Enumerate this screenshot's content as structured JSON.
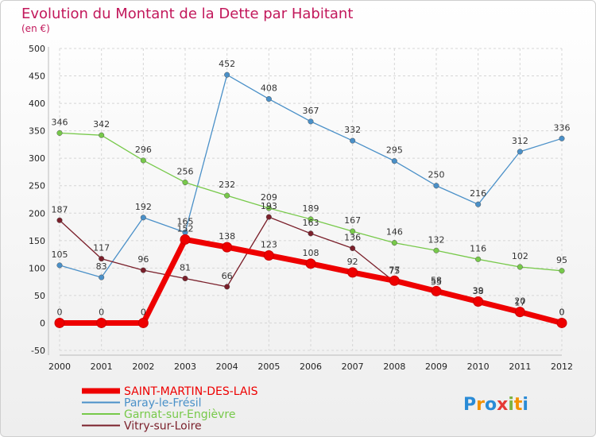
{
  "chart_data": {
    "type": "line",
    "title": "Evolution du Montant de la Dette par Habitant",
    "subtitle": "(en €)",
    "x": [
      "2000",
      "2001",
      "2002",
      "2003",
      "2004",
      "2005",
      "2006",
      "2007",
      "2008",
      "2009",
      "2010",
      "2011",
      "2012"
    ],
    "ylim": [
      -50,
      500
    ],
    "yticks": [
      "-50",
      "0",
      "50",
      "100",
      "150",
      "200",
      "250",
      "300",
      "350",
      "400",
      "450",
      "500"
    ],
    "grid": true,
    "legend_position": "bottom-left",
    "series": [
      {
        "name": "Paray-le-Frésil",
        "color": "#4a90c8",
        "values": [
          105,
          83,
          192,
          165,
          452,
          408,
          367,
          332,
          295,
          250,
          216,
          312,
          336
        ]
      },
      {
        "name": "Garnat-sur-Engièvre",
        "color": "#77c94a",
        "values": [
          346,
          342,
          296,
          256,
          232,
          209,
          189,
          167,
          146,
          132,
          116,
          102,
          95
        ]
      },
      {
        "name": "Vitry-sur-Loire",
        "color": "#7a1f2a",
        "values": [
          187,
          117,
          96,
          81,
          66,
          193,
          163,
          136,
          75,
          55,
          38,
          17,
          0
        ]
      },
      {
        "name": "SAINT-MARTIN-DES-LAIS",
        "color": "#ee0000",
        "values": [
          0,
          0,
          0,
          152,
          138,
          123,
          108,
          92,
          77,
          58,
          39,
          20,
          0
        ]
      }
    ],
    "legend_order": [
      "SAINT-MARTIN-DES-LAIS",
      "Paray-le-Frésil",
      "Garnat-sur-Engièvre",
      "Vitry-sur-Loire"
    ]
  },
  "branding": {
    "logo_text": "Proxiti"
  }
}
